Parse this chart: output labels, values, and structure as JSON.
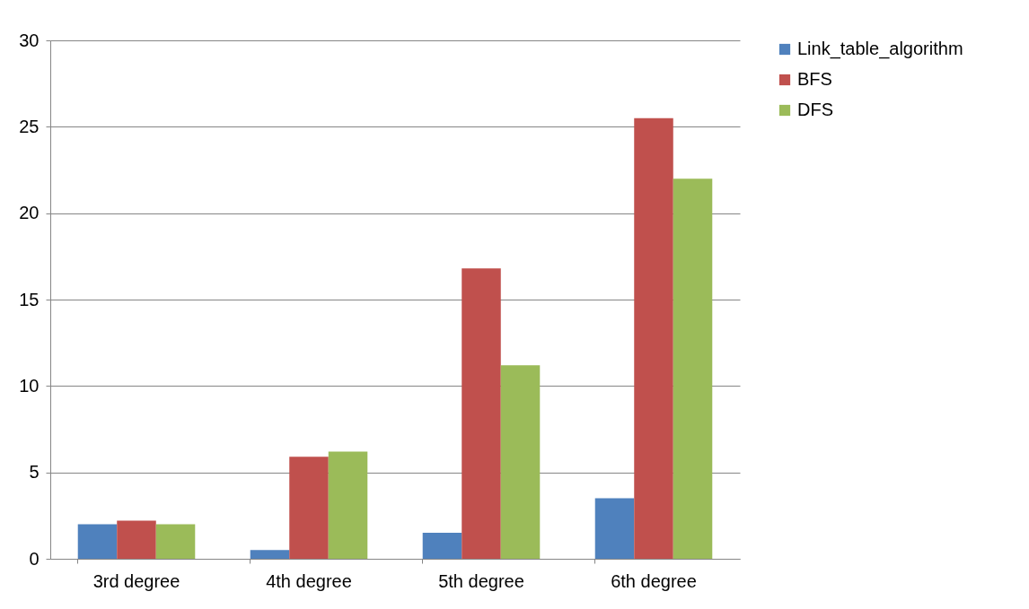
{
  "chart_data": {
    "type": "bar",
    "categories": [
      "3rd degree",
      "4th degree",
      "5th degree",
      "6th degree"
    ],
    "series": [
      {
        "name": "Link_table_algorithm",
        "color": "#4f81bd",
        "values": [
          2.0,
          0.5,
          1.5,
          3.5
        ]
      },
      {
        "name": "BFS",
        "color": "#c0504d",
        "values": [
          2.2,
          5.9,
          16.8,
          25.5
        ]
      },
      {
        "name": "DFS",
        "color": "#9bbb59",
        "values": [
          2.0,
          6.2,
          11.2,
          22.0
        ]
      }
    ],
    "ylim": [
      0,
      30
    ],
    "yticks": [
      0,
      5,
      10,
      15,
      20,
      25,
      30
    ],
    "grid": "y",
    "legend": "right"
  }
}
